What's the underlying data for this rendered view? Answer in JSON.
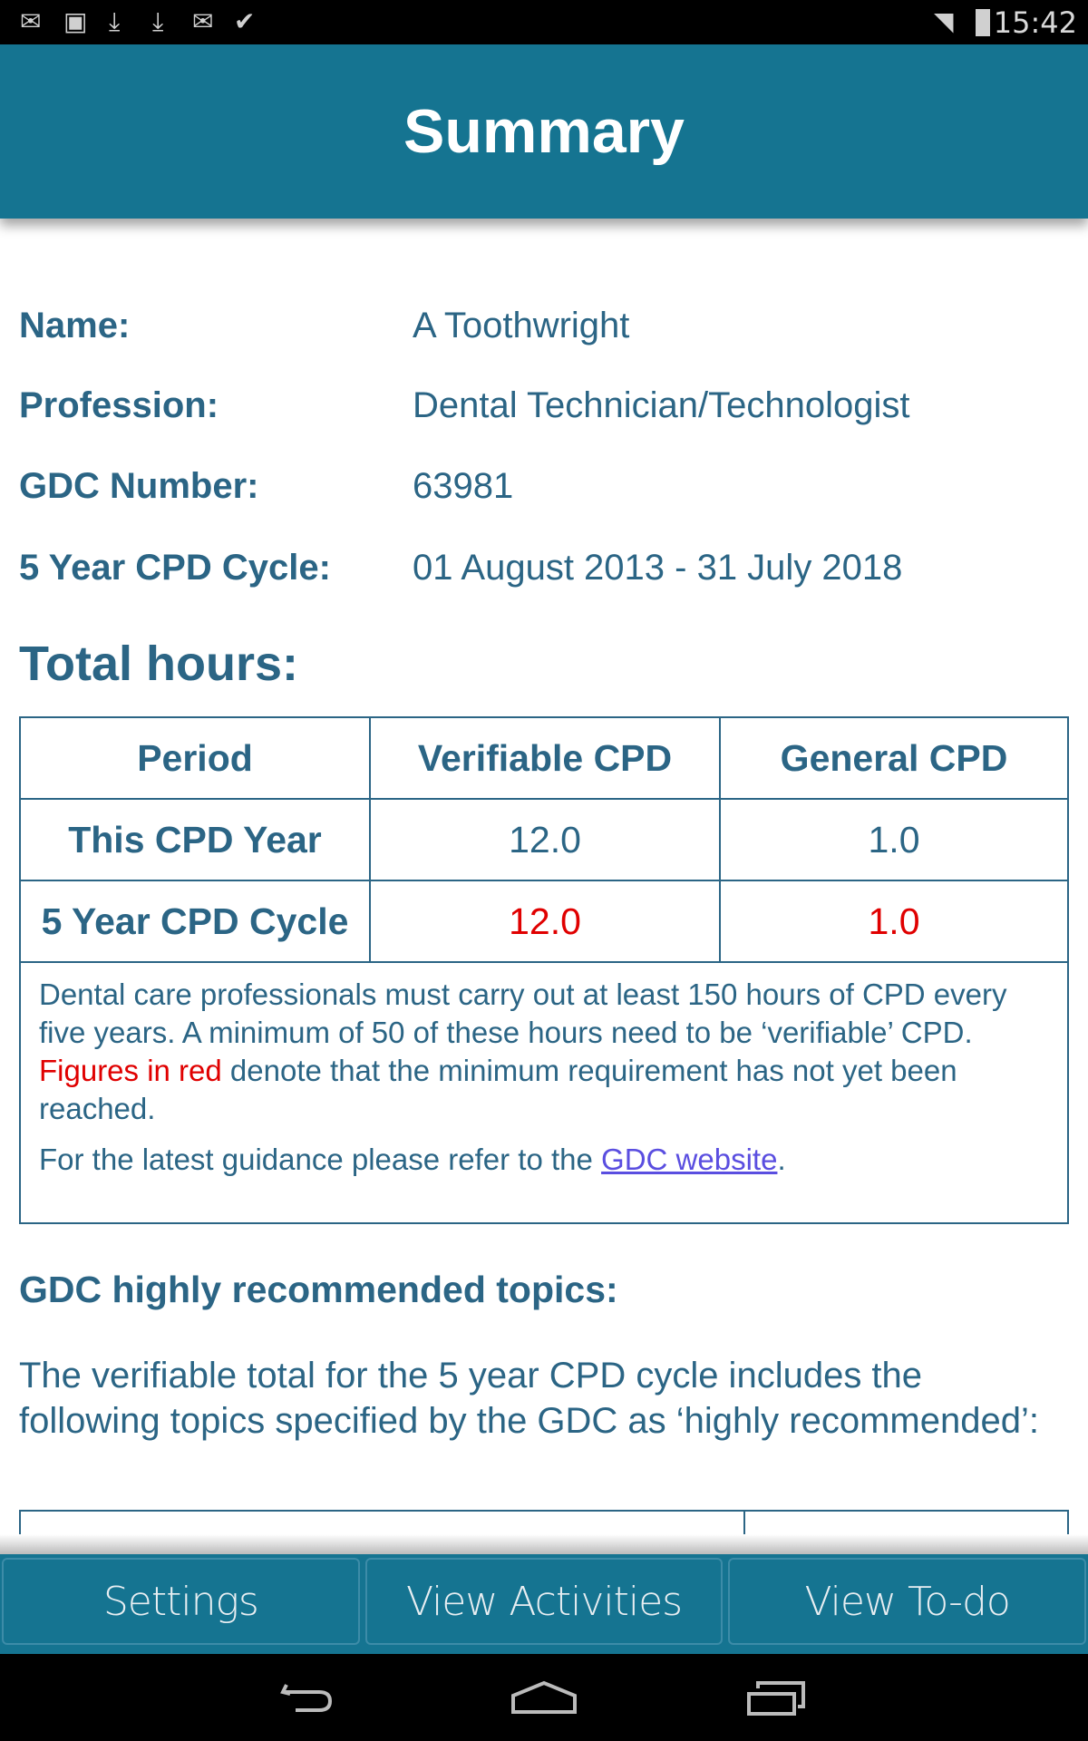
{
  "status_bar": {
    "time": "15:42",
    "icons": [
      "gmail-icon",
      "image-icon",
      "download-icon",
      "download-icon",
      "gmail-icon",
      "cloud-check-icon",
      "wifi-icon",
      "battery-icon"
    ]
  },
  "header": {
    "title": "Summary"
  },
  "info": [
    {
      "label": "Name:",
      "value": "A Toothwright"
    },
    {
      "label": "Profession:",
      "value": "Dental Technician/Technologist"
    },
    {
      "label": "GDC Number:",
      "value": "63981"
    },
    {
      "label": "5 Year CPD Cycle:",
      "value": "01 August 2013 - 31 July 2018"
    }
  ],
  "total_hours": {
    "title": "Total hours:",
    "headers": [
      "Period",
      "Verifiable CPD",
      "General CPD"
    ],
    "rows": [
      {
        "period": "This CPD Year",
        "verifiable": "12.0",
        "general": "1.0"
      },
      {
        "period": "5 Year CPD Cycle",
        "verifiable": "12.0",
        "general": "1.0"
      }
    ],
    "note_part1": "Dental care professionals must carry out at least 150 hours of CPD every five years. A minimum of 50 of these hours need to be ‘verifiable’ CPD. ",
    "note_red": "Figures in red",
    "note_part2": " denote that the minimum requirement has not yet been reached.",
    "guidance_prefix": "For the latest guidance please refer to the ",
    "guidance_link": "GDC website",
    "guidance_suffix": ".",
    "warning_color": "#e00000"
  },
  "gdc_topics": {
    "title": "GDC highly recommended topics:",
    "description": "The verifiable total for the 5 year CPD cycle includes the following topics specified by the GDC as ‘highly recommended’:"
  },
  "bottom_bar": {
    "buttons": [
      "Settings",
      "View Activities",
      "View To-do"
    ]
  },
  "colors": {
    "primary": "#157491",
    "text": "#2b6585"
  }
}
